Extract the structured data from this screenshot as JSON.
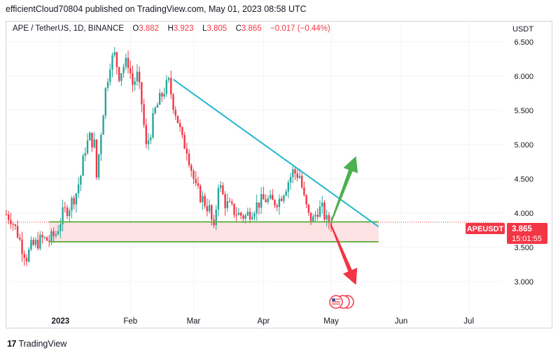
{
  "header": {
    "published_line": "efficientCloud70804 published on TradingView.com, May 01, 2023 08:58 UTC"
  },
  "legend": {
    "symbol": "APE / TetherUS, 1D, BINANCE",
    "o_label": "O",
    "o_value": "3.882",
    "h_label": "H",
    "h_value": "3.923",
    "l_label": "L",
    "l_value": "3.805",
    "c_label": "C",
    "c_value": "3.865",
    "change": "−0.017 (−0.44%)"
  },
  "price_scale": {
    "currency": "USDT",
    "ticker_badge": "APEUSDT",
    "last_price": "3.865",
    "countdown": "15:01:55"
  },
  "footer": {
    "logo_text": "TradingView"
  },
  "colors": {
    "up": "#26a69a",
    "down": "#f23645",
    "trendline": "#22b8cf",
    "support": "#6ab04c",
    "zone_fill": "#fde3e3",
    "arrow_up": "#4caf50",
    "arrow_down": "#f23645"
  },
  "icons": {
    "event_marker": "us-flag-events-icon"
  },
  "chart_data": {
    "type": "candlestick",
    "title": "",
    "ylim": [
      2.6,
      6.6
    ],
    "y_ticks": [
      "6.500",
      "6.000",
      "5.500",
      "5.000",
      "4.500",
      "4.000",
      "3.500",
      "3.000"
    ],
    "y_tick_values": [
      6.5,
      6.0,
      5.5,
      5.0,
      4.5,
      4.0,
      3.5,
      3.0
    ],
    "x_ticks": [
      "2023",
      "Feb",
      "Mar",
      "Apr",
      "May",
      "Jun",
      "Jul"
    ],
    "x_tick_dates": [
      "2023-01-01",
      "2023-02-01",
      "2023-03-01",
      "2023-04-01",
      "2023-05-01",
      "2023-06-01",
      "2023-07-01"
    ],
    "x_range": [
      "2022-12-08",
      "2023-07-16"
    ],
    "grid": true,
    "series_close": [
      [
        "2022-12-08",
        3.98
      ],
      [
        "2022-12-10",
        3.93
      ],
      [
        "2022-12-13",
        3.7
      ],
      [
        "2022-12-15",
        3.5
      ],
      [
        "2022-12-17",
        3.36
      ],
      [
        "2022-12-19",
        3.5
      ],
      [
        "2022-12-21",
        3.55
      ],
      [
        "2022-12-24",
        3.62
      ],
      [
        "2022-12-27",
        3.6
      ],
      [
        "2022-12-30",
        3.7
      ],
      [
        "2023-01-02",
        3.98
      ],
      [
        "2023-01-05",
        4.1
      ],
      [
        "2023-01-08",
        4.3
      ],
      [
        "2023-01-10",
        4.55
      ],
      [
        "2023-01-12",
        4.95
      ],
      [
        "2023-01-14",
        5.1
      ],
      [
        "2023-01-16",
        5.0
      ],
      [
        "2023-01-17",
        4.52
      ],
      [
        "2023-01-19",
        5.2
      ],
      [
        "2023-01-21",
        5.8
      ],
      [
        "2023-01-23",
        6.2
      ],
      [
        "2023-01-25",
        6.3
      ],
      [
        "2023-01-27",
        6.02
      ],
      [
        "2023-01-29",
        6.15
      ],
      [
        "2023-01-31",
        6.2
      ],
      [
        "2023-02-02",
        5.88
      ],
      [
        "2023-02-04",
        6.0
      ],
      [
        "2023-02-06",
        5.6
      ],
      [
        "2023-02-08",
        4.95
      ],
      [
        "2023-02-10",
        5.2
      ],
      [
        "2023-02-12",
        5.5
      ],
      [
        "2023-02-14",
        5.65
      ],
      [
        "2023-02-16",
        5.8
      ],
      [
        "2023-02-18",
        5.9
      ],
      [
        "2023-02-20",
        5.6
      ],
      [
        "2023-02-22",
        5.35
      ],
      [
        "2023-02-24",
        5.05
      ],
      [
        "2023-02-26",
        4.95
      ],
      [
        "2023-02-28",
        4.65
      ],
      [
        "2023-03-02",
        4.35
      ],
      [
        "2023-03-05",
        4.2
      ],
      [
        "2023-03-08",
        4.05
      ],
      [
        "2023-03-10",
        3.72
      ],
      [
        "2023-03-12",
        4.45
      ],
      [
        "2023-03-15",
        4.15
      ],
      [
        "2023-03-18",
        4.05
      ],
      [
        "2023-03-21",
        3.98
      ],
      [
        "2023-03-24",
        3.95
      ],
      [
        "2023-03-27",
        4.05
      ],
      [
        "2023-03-30",
        4.15
      ],
      [
        "2023-04-02",
        4.2
      ],
      [
        "2023-04-05",
        4.15
      ],
      [
        "2023-04-08",
        4.2
      ],
      [
        "2023-04-11",
        4.4
      ],
      [
        "2023-04-14",
        4.6
      ],
      [
        "2023-04-17",
        4.55
      ],
      [
        "2023-04-19",
        4.2
      ],
      [
        "2023-04-21",
        3.95
      ],
      [
        "2023-04-23",
        3.9
      ],
      [
        "2023-04-25",
        4.05
      ],
      [
        "2023-04-27",
        4.05
      ],
      [
        "2023-04-29",
        3.88
      ],
      [
        "2023-05-01",
        3.865
      ]
    ],
    "drawings": {
      "trendline": [
        [
          "2023-02-20",
          5.95
        ],
        [
          "2023-05-22",
          3.8
        ]
      ],
      "support_top": {
        "y": 3.87,
        "from": "2022-12-27",
        "to": "2023-05-22"
      },
      "support_bottom": {
        "y": 3.58,
        "from": "2022-12-27",
        "to": "2023-05-22"
      },
      "arrow_up": [
        [
          "2023-05-01",
          3.87
        ],
        [
          "2023-05-12",
          4.83
        ]
      ],
      "arrow_down": [
        [
          "2023-05-01",
          3.82
        ],
        [
          "2023-05-12",
          2.95
        ]
      ],
      "last_price_line": 3.865
    }
  }
}
